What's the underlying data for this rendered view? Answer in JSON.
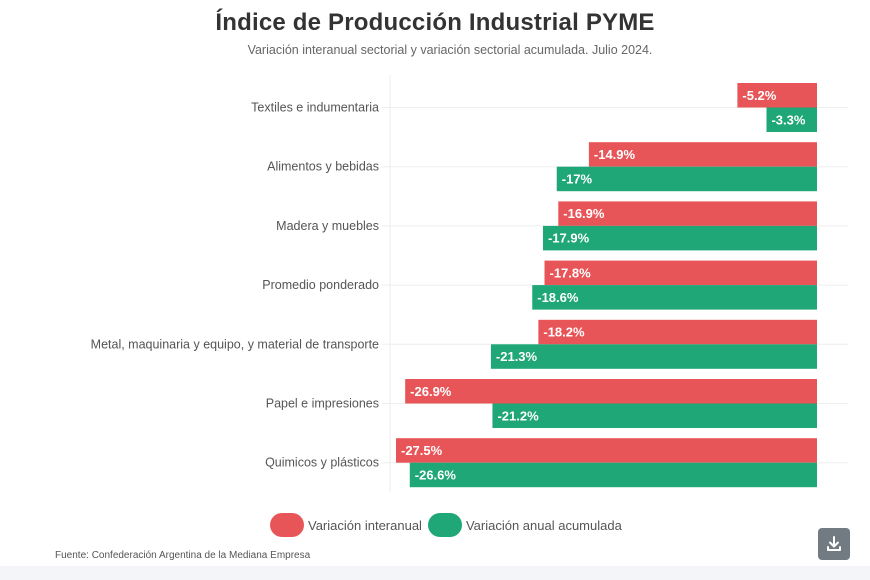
{
  "header": {
    "title": "Índice de Producción Industrial PYME",
    "subtitle": "Variación interanual sectorial y variación sectorial acumulada. Julio 2024."
  },
  "colors": {
    "interanual": "#e85558",
    "acumulada": "#1fa778",
    "grid": "#eeeeee"
  },
  "legend": {
    "items": [
      {
        "label": "Variación interanual",
        "color": "#e85558"
      },
      {
        "label": "Variación anual acumulada",
        "color": "#1fa778"
      }
    ]
  },
  "source": "Fuente: Confederación Argentina de la Mediana Empresa",
  "download": {
    "icon": "download-icon"
  },
  "chart_data": {
    "type": "bar",
    "orientation": "horizontal",
    "title": "Índice de Producción Industrial PYME",
    "subtitle": "Variación interanual sectorial y variación sectorial acumulada. Julio 2024.",
    "xlabel": "",
    "ylabel": "",
    "xlim": [
      -27.5,
      0
    ],
    "grid": true,
    "legend_position": "bottom-center",
    "categories": [
      "Textiles e indumentaria",
      "Alimentos y bebidas",
      "Madera y muebles",
      "Promedio ponderado",
      "Metal, maquinaria y equipo, y material de transporte",
      "Papel e impresiones",
      "Quimicos y plásticos"
    ],
    "series": [
      {
        "name": "Variación interanual",
        "color": "#e85558",
        "values": [
          -5.2,
          -14.9,
          -16.9,
          -17.8,
          -18.2,
          -26.9,
          -27.5
        ],
        "labels": [
          "-5.2%",
          "-14.9%",
          "-16.9%",
          "-17.8%",
          "-18.2%",
          "-26.9%",
          "-27.5%"
        ]
      },
      {
        "name": "Variación anual acumulada",
        "color": "#1fa778",
        "values": [
          -3.3,
          -17,
          -17.9,
          -18.6,
          -21.3,
          -21.2,
          -26.6
        ],
        "labels": [
          "-3.3%",
          "-17%",
          "-17.9%",
          "-18.6%",
          "-21.3%",
          "-21.2%",
          "-26.6%"
        ]
      }
    ]
  }
}
